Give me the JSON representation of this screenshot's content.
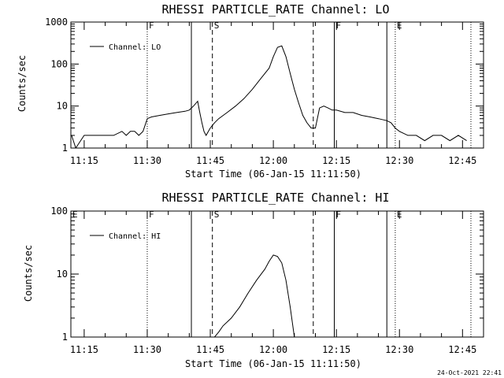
{
  "footer": {
    "timestamp": "24-Oct-2021 22:41"
  },
  "chart_data": [
    {
      "type": "line",
      "title": "RHESSI PARTICLE_RATE Channel: LO",
      "xlabel": "Start Time (06-Jan-15 11:11:50)",
      "ylabel": "Counts/sec",
      "y_scale": "log",
      "ylim": [
        1,
        1000
      ],
      "y_ticks": [
        1,
        10,
        100,
        1000
      ],
      "y_tick_labels": [
        "1",
        "10",
        "100",
        "1000"
      ],
      "xlim": [
        "11:11:50",
        "12:50:00"
      ],
      "x_ticks": [
        "11:15",
        "11:30",
        "11:45",
        "12:00",
        "12:15",
        "12:30",
        "12:45"
      ],
      "legend": {
        "label": "Channel: LO",
        "position": "top-left"
      },
      "series": [
        {
          "name": "Channel: LO",
          "x": [
            "11:12",
            "11:13",
            "11:15",
            "11:18",
            "11:20",
            "11:22",
            "11:24",
            "11:25",
            "11:26",
            "11:27",
            "11:28",
            "11:29",
            "11:30",
            "11:31",
            "11:33",
            "11:35",
            "11:37",
            "11:39",
            "11:40",
            "11:41",
            "11:42",
            "11:42:30",
            "11:43",
            "11:43:30",
            "11:44",
            "11:45",
            "11:46",
            "11:47",
            "11:49",
            "11:51",
            "11:53",
            "11:55",
            "11:57",
            "11:59",
            "12:00",
            "12:01",
            "12:02",
            "12:03",
            "12:04",
            "12:05",
            "12:06",
            "12:07",
            "12:08",
            "12:09",
            "12:10",
            "12:11",
            "12:12",
            "12:13",
            "12:14",
            "12:15",
            "12:17",
            "12:19",
            "12:21",
            "12:23",
            "12:25",
            "12:27",
            "12:28",
            "12:29",
            "12:30",
            "12:32",
            "12:34",
            "12:36",
            "12:38",
            "12:40",
            "12:42",
            "12:44",
            "12:46"
          ],
          "values": [
            2.0,
            1.0,
            2.0,
            2.0,
            2.0,
            2.0,
            2.5,
            2.0,
            2.5,
            2.5,
            2.0,
            2.5,
            5.0,
            5.5,
            6.0,
            6.5,
            7.0,
            7.5,
            8.0,
            10.0,
            13.0,
            7.0,
            4.0,
            2.5,
            2.0,
            3.0,
            4.0,
            5.0,
            7.0,
            10.0,
            15.0,
            25.0,
            45.0,
            80.0,
            150.0,
            250.0,
            270.0,
            150.0,
            60.0,
            25.0,
            12.0,
            6.0,
            4.0,
            3.0,
            3.0,
            9.0,
            10.0,
            9.0,
            8.0,
            8.0,
            7.0,
            7.0,
            6.0,
            5.5,
            5.0,
            4.5,
            4.0,
            3.0,
            2.5,
            2.0,
            2.0,
            1.5,
            2.0,
            2.0,
            1.5,
            2.0,
            1.5
          ]
        }
      ],
      "annotations": [
        {
          "label": "F",
          "time": "11:30",
          "style": "dotted"
        },
        {
          "label": "",
          "time": "11:40:30",
          "style": "solid"
        },
        {
          "label": "S",
          "time": "11:45:30",
          "style": "dashed"
        },
        {
          "label": "",
          "time": "12:09:30",
          "style": "dashed"
        },
        {
          "label": "F",
          "time": "12:14:30",
          "style": "solid"
        },
        {
          "label": "",
          "time": "12:27",
          "style": "solid"
        },
        {
          "label": "E",
          "time": "12:29",
          "style": "dotted"
        },
        {
          "label": "",
          "time": "12:47",
          "style": "dotted"
        }
      ]
    },
    {
      "type": "line",
      "title": "RHESSI PARTICLE_RATE Channel: HI",
      "xlabel": "Start Time (06-Jan-15 11:11:50)",
      "ylabel": "Counts/sec",
      "y_scale": "log",
      "ylim": [
        1,
        100
      ],
      "y_ticks": [
        1,
        10,
        100
      ],
      "y_tick_labels": [
        "1",
        "10",
        "100"
      ],
      "xlim": [
        "11:11:50",
        "12:50:00"
      ],
      "x_ticks": [
        "11:15",
        "11:30",
        "11:45",
        "12:00",
        "12:15",
        "12:30",
        "12:45"
      ],
      "legend": {
        "label": "Channel: HI",
        "position": "top-left"
      },
      "series": [
        {
          "name": "Channel: HI",
          "x": [
            "11:46",
            "11:47",
            "11:48",
            "11:50",
            "11:52",
            "11:54",
            "11:56",
            "11:58",
            "11:59",
            "12:00",
            "12:01",
            "12:02",
            "12:03",
            "12:04",
            "12:05"
          ],
          "values": [
            1.0,
            1.2,
            1.5,
            2.0,
            3.0,
            5.0,
            8.0,
            12.0,
            16.0,
            20.0,
            19.0,
            15.0,
            8.0,
            3.0,
            1.0
          ]
        }
      ],
      "annotations": [
        {
          "label": "E",
          "time": "11:11:50",
          "style": "dotted"
        },
        {
          "label": "F",
          "time": "11:30",
          "style": "dotted"
        },
        {
          "label": "",
          "time": "11:40:30",
          "style": "solid"
        },
        {
          "label": "S",
          "time": "11:45:30",
          "style": "dashed"
        },
        {
          "label": "",
          "time": "12:09:30",
          "style": "dashed"
        },
        {
          "label": "F",
          "time": "12:14:30",
          "style": "solid"
        },
        {
          "label": "",
          "time": "12:27",
          "style": "solid"
        },
        {
          "label": "E",
          "time": "12:29",
          "style": "dotted"
        },
        {
          "label": "",
          "time": "12:47",
          "style": "dotted"
        }
      ]
    }
  ]
}
